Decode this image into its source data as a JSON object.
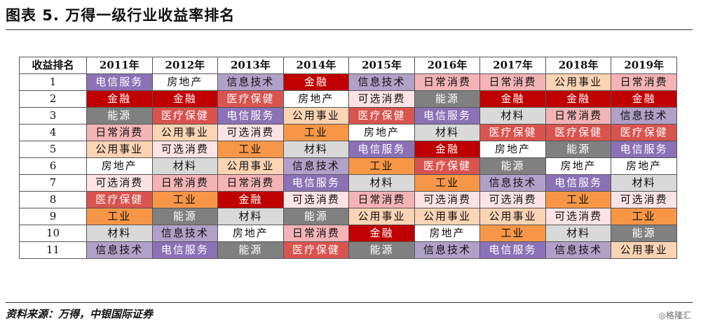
{
  "title": "图表 5. 万得一级行业收益率排名",
  "source": "资料来源：万得，中银国际证券",
  "watermark": "◎格隆汇",
  "industry_colors": {
    "电信服务": {
      "bg": "#8b71b5",
      "fg": "#ffffff"
    },
    "金融": {
      "bg": "#c00000",
      "fg": "#ffffff"
    },
    "能源": {
      "bg": "#808080",
      "fg": "#ffffff"
    },
    "日常消费": {
      "bg": "#f4b4b6",
      "fg": "#111111"
    },
    "公用事业": {
      "bg": "#fbd4b4",
      "fg": "#111111"
    },
    "房地产": {
      "bg": "#ffffff",
      "fg": "#111111"
    },
    "可选消费": {
      "bg": "#fde3e3",
      "fg": "#111111"
    },
    "医疗保健": {
      "bg": "#d9534f",
      "fg": "#ffffff"
    },
    "工业": {
      "bg": "#f79646",
      "fg": "#111111"
    },
    "材料": {
      "bg": "#d9d9d9",
      "fg": "#111111"
    },
    "信息技术": {
      "bg": "#b1a0c7",
      "fg": "#111111"
    }
  },
  "chart_data": {
    "type": "table",
    "header_label": "收益排名",
    "columns": [
      "2011年",
      "2012年",
      "2013年",
      "2014年",
      "2015年",
      "2016年",
      "2017年",
      "2018年",
      "2019年"
    ],
    "rows": [
      {
        "rank": "1",
        "cells": [
          "电信服务",
          "房地产",
          "信息技术",
          "金融",
          "信息技术",
          "日常消费",
          "日常消费",
          "公用事业",
          "日常消费"
        ]
      },
      {
        "rank": "2",
        "cells": [
          "金融",
          "金融",
          "医疗保健",
          "房地产",
          "可选消费",
          "能源",
          "金融",
          "金融",
          "金融"
        ]
      },
      {
        "rank": "3",
        "cells": [
          "能源",
          "医疗保健",
          "电信服务",
          "公用事业",
          "医疗保健",
          "电信服务",
          "材料",
          "日常消费",
          "信息技术"
        ]
      },
      {
        "rank": "4",
        "cells": [
          "日常消费",
          "公用事业",
          "可选消费",
          "工业",
          "房地产",
          "材料",
          "医疗保健",
          "医疗保健",
          "医疗保健"
        ]
      },
      {
        "rank": "5",
        "cells": [
          "公用事业",
          "可选消费",
          "工业",
          "材料",
          "电信服务",
          "金融",
          "房地产",
          "能源",
          "电信服务"
        ]
      },
      {
        "rank": "6",
        "cells": [
          "房地产",
          "材料",
          "公用事业",
          "信息技术",
          "工业",
          "医疗保健",
          "能源",
          "房地产",
          "房地产"
        ]
      },
      {
        "rank": "7",
        "cells": [
          "可选消费",
          "日常消费",
          "日常消费",
          "电信服务",
          "材料",
          "工业",
          "信息技术",
          "电信服务",
          "材料"
        ]
      },
      {
        "rank": "8",
        "cells": [
          "医疗保健",
          "工业",
          "金融",
          "可选消费",
          "日常消费",
          "可选消费",
          "可选消费",
          "工业",
          "可选消费"
        ]
      },
      {
        "rank": "9",
        "cells": [
          "工业",
          "能源",
          "材料",
          "能源",
          "公用事业",
          "公用事业",
          "公用事业",
          "可选消费",
          "工业"
        ]
      },
      {
        "rank": "10",
        "cells": [
          "材料",
          "信息技术",
          "房地产",
          "日常消费",
          "金融",
          "房地产",
          "工业",
          "材料",
          "能源"
        ]
      },
      {
        "rank": "11",
        "cells": [
          "信息技术",
          "电信服务",
          "能源",
          "医疗保健",
          "能源",
          "信息技术",
          "电信服务",
          "信息技术",
          "公用事业"
        ]
      }
    ]
  }
}
